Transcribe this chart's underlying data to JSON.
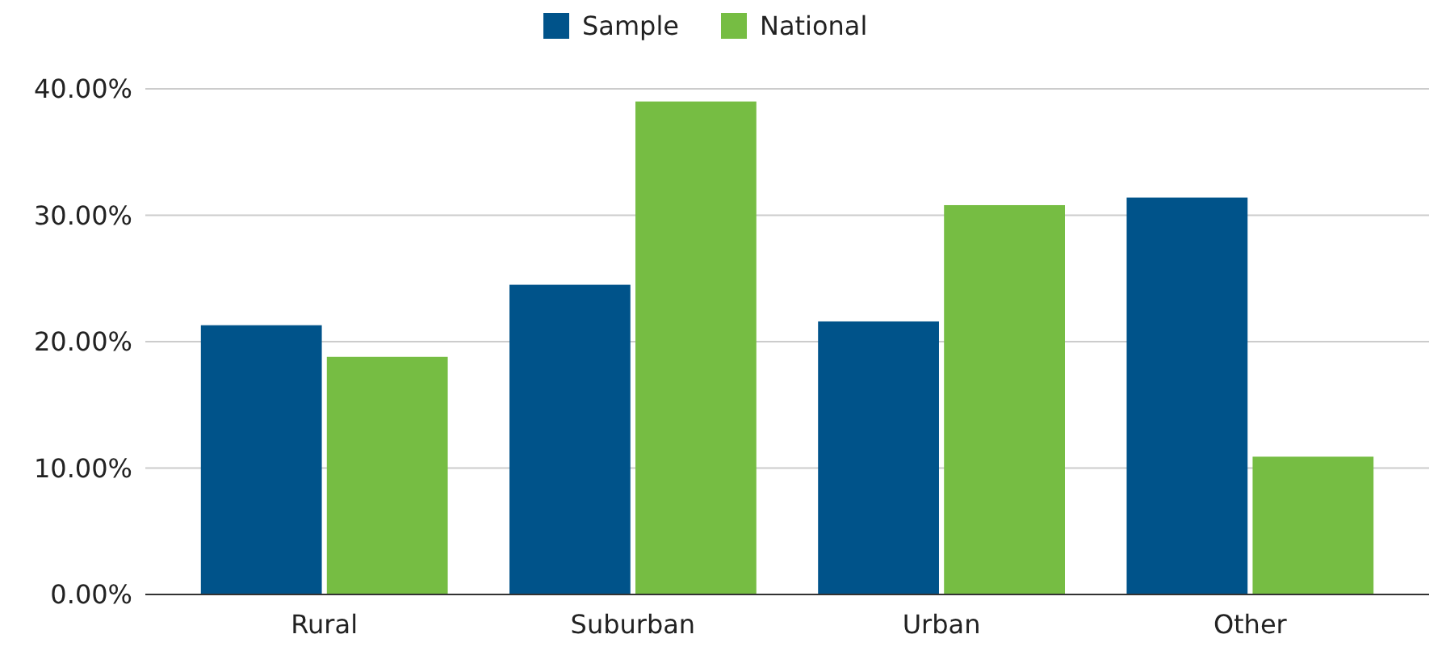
{
  "chart_data": {
    "type": "bar",
    "categories": [
      "Rural",
      "Suburban",
      "Urban",
      "Other"
    ],
    "series": [
      {
        "name": "Sample",
        "color": "#00538a",
        "values": [
          21.3,
          24.5,
          21.6,
          31.4
        ]
      },
      {
        "name": "National",
        "color": "#76bd43",
        "values": [
          18.8,
          39.0,
          30.8,
          10.9
        ]
      }
    ],
    "ylim": [
      0,
      40
    ],
    "yticks": [
      {
        "value": 0,
        "label": "0.00%"
      },
      {
        "value": 10,
        "label": "10.00%"
      },
      {
        "value": 20,
        "label": "20.00%"
      },
      {
        "value": 30,
        "label": "30.00%"
      },
      {
        "value": 40,
        "label": "40.00%"
      }
    ],
    "grid": "y",
    "legend": "top"
  }
}
